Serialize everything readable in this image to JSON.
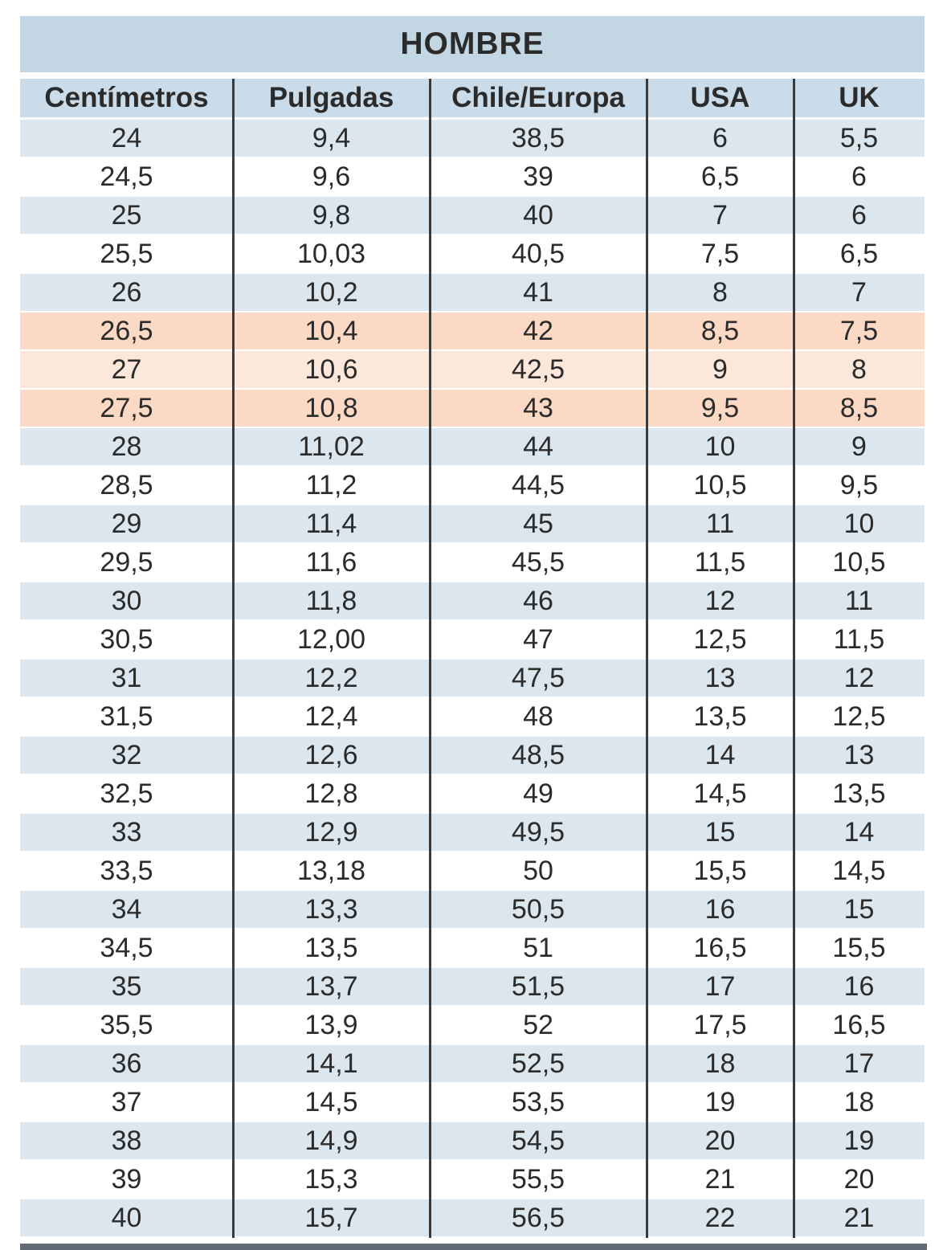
{
  "table": {
    "title": "HOMBRE",
    "columns": [
      "Centímetros",
      "Pulgadas",
      "Chile/Europa",
      "USA",
      "UK"
    ],
    "rows": [
      {
        "band": "blue",
        "values": [
          "24",
          "9,4",
          "38,5",
          "6",
          "5,5"
        ]
      },
      {
        "band": "white",
        "values": [
          "24,5",
          "9,6",
          "39",
          "6,5",
          "6"
        ]
      },
      {
        "band": "blue",
        "values": [
          "25",
          "9,8",
          "40",
          "7",
          "6"
        ]
      },
      {
        "band": "white",
        "values": [
          "25,5",
          "10,03",
          "40,5",
          "7,5",
          "6,5"
        ]
      },
      {
        "band": "blue",
        "values": [
          "26",
          "10,2",
          "41",
          "8",
          "7"
        ]
      },
      {
        "band": "peach_dark",
        "values": [
          "26,5",
          "10,4",
          "42",
          "8,5",
          "7,5"
        ]
      },
      {
        "band": "peach_light",
        "values": [
          "27",
          "10,6",
          "42,5",
          "9",
          "8"
        ]
      },
      {
        "band": "peach_dark",
        "values": [
          "27,5",
          "10,8",
          "43",
          "9,5",
          "8,5"
        ]
      },
      {
        "band": "blue",
        "values": [
          "28",
          "11,02",
          "44",
          "10",
          "9"
        ]
      },
      {
        "band": "white",
        "values": [
          "28,5",
          "11,2",
          "44,5",
          "10,5",
          "9,5"
        ]
      },
      {
        "band": "blue",
        "values": [
          "29",
          "11,4",
          "45",
          "11",
          "10"
        ]
      },
      {
        "band": "white",
        "values": [
          "29,5",
          "11,6",
          "45,5",
          "11,5",
          "10,5"
        ]
      },
      {
        "band": "blue",
        "values": [
          "30",
          "11,8",
          "46",
          "12",
          "11"
        ]
      },
      {
        "band": "white",
        "values": [
          "30,5",
          "12,00",
          "47",
          "12,5",
          "11,5"
        ]
      },
      {
        "band": "blue",
        "values": [
          "31",
          "12,2",
          "47,5",
          "13",
          "12"
        ]
      },
      {
        "band": "white",
        "values": [
          "31,5",
          "12,4",
          "48",
          "13,5",
          "12,5"
        ]
      },
      {
        "band": "blue",
        "values": [
          "32",
          "12,6",
          "48,5",
          "14",
          "13"
        ]
      },
      {
        "band": "white",
        "values": [
          "32,5",
          "12,8",
          "49",
          "14,5",
          "13,5"
        ]
      },
      {
        "band": "blue",
        "values": [
          "33",
          "12,9",
          "49,5",
          "15",
          "14"
        ]
      },
      {
        "band": "white",
        "values": [
          "33,5",
          "13,18",
          "50",
          "15,5",
          "14,5"
        ]
      },
      {
        "band": "blue",
        "values": [
          "34",
          "13,3",
          "50,5",
          "16",
          "15"
        ]
      },
      {
        "band": "white",
        "values": [
          "34,5",
          "13,5",
          "51",
          "16,5",
          "15,5"
        ]
      },
      {
        "band": "blue",
        "values": [
          "35",
          "13,7",
          "51,5",
          "17",
          "16"
        ]
      },
      {
        "band": "white",
        "values": [
          "35,5",
          "13,9",
          "52",
          "17,5",
          "16,5"
        ]
      },
      {
        "band": "blue",
        "values": [
          "36",
          "14,1",
          "52,5",
          "18",
          "17"
        ]
      },
      {
        "band": "white",
        "values": [
          "37",
          "14,5",
          "53,5",
          "19",
          "18"
        ]
      },
      {
        "band": "blue",
        "values": [
          "38",
          "14,9",
          "54,5",
          "20",
          "19"
        ]
      },
      {
        "band": "white",
        "values": [
          "39",
          "15,3",
          "55,5",
          "21",
          "20"
        ]
      },
      {
        "band": "blue",
        "values": [
          "40",
          "15,7",
          "56,5",
          "22",
          "21"
        ]
      }
    ]
  },
  "colors": {
    "title_band": "#c3d6e3",
    "header_band": "#cadce9",
    "row_blue": "#dbe6ee",
    "row_white": "#ffffff",
    "row_peach_dark": "#fbd9c4",
    "row_peach_light": "#fce8da",
    "divider_line": "#3a3a3a",
    "text": "#2b2b2b",
    "bottom_strip": "#5f6a74"
  }
}
